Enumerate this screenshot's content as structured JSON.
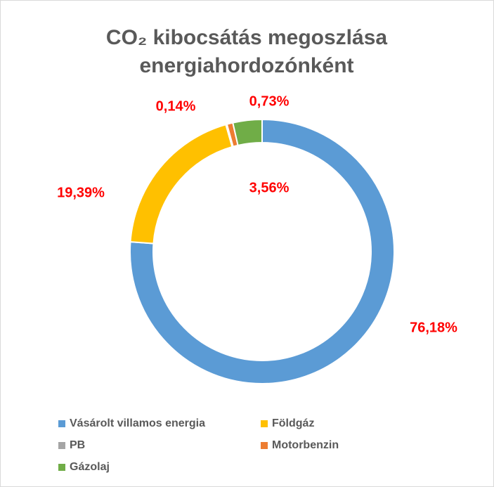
{
  "chart_data": {
    "type": "donut",
    "title": "CO₂ kibocsátás megoszlása energiahordozónként",
    "categories": [
      "Vásárolt villamos energia",
      "Földgáz",
      "PB",
      "Motorbenzin",
      "Gázolaj"
    ],
    "values": [
      76.18,
      19.39,
      0.14,
      0.73,
      3.56
    ],
    "value_labels": [
      "76,18%",
      "19,39%",
      "0,14%",
      "0,73%",
      "3,56%"
    ],
    "colors": [
      "#5b9bd5",
      "#ffc000",
      "#a5a5a5",
      "#ed7d31",
      "#70ad47"
    ],
    "legend": "bottom"
  }
}
